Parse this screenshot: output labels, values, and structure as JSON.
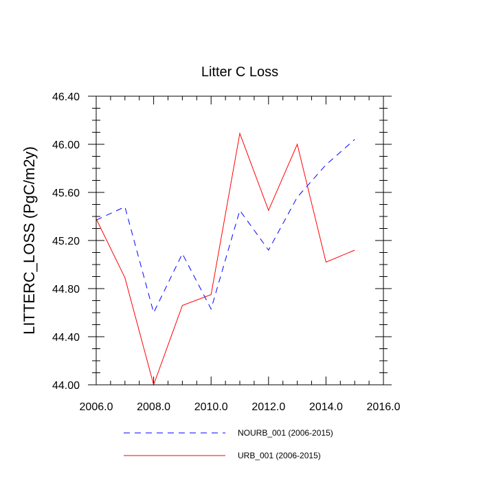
{
  "chart_data": {
    "type": "line",
    "title": "Litter C Loss",
    "xlabel": "",
    "ylabel": "LITTERC_LOSS  (PgC/m2y)",
    "xlim": [
      2006,
      2016
    ],
    "ylim": [
      44.0,
      46.4
    ],
    "xticks": [
      2006,
      2008,
      2010,
      2012,
      2014,
      2016
    ],
    "xtick_labels": [
      "2006.0",
      "2008.0",
      "2010.0",
      "2012.0",
      "2014.0",
      "2016.0"
    ],
    "yticks": [
      44.0,
      44.4,
      44.8,
      45.2,
      45.6,
      46.0,
      46.4
    ],
    "ytick_labels": [
      "44.00",
      "44.40",
      "44.80",
      "45.20",
      "45.60",
      "46.00",
      "46.40"
    ],
    "grid": false,
    "legend_position": "bottom",
    "series": [
      {
        "name": "NOURB_001 (2006-2015)",
        "color": "#0000ff",
        "style": "dashed",
        "x": [
          2006,
          2007,
          2008,
          2009,
          2010,
          2011,
          2012,
          2013,
          2014,
          2015
        ],
        "values": [
          45.37,
          45.48,
          44.6,
          45.09,
          44.63,
          45.45,
          45.12,
          45.56,
          45.83,
          46.04
        ]
      },
      {
        "name": "URB_001 (2006-2015)",
        "color": "#ff0000",
        "style": "solid",
        "x": [
          2006,
          2007,
          2008,
          2009,
          2010,
          2011,
          2012,
          2013,
          2014,
          2015
        ],
        "values": [
          45.38,
          44.89,
          44.0,
          44.66,
          44.75,
          46.09,
          45.45,
          46.0,
          45.02,
          45.12
        ]
      }
    ]
  }
}
